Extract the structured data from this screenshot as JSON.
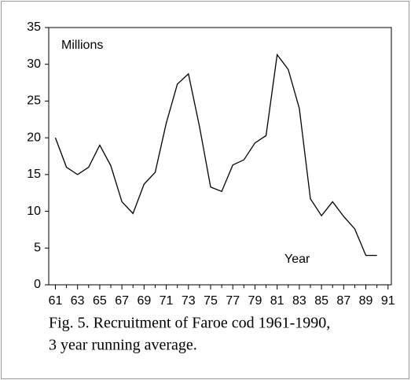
{
  "chart_data": {
    "type": "line",
    "annotations": [
      "Millions",
      "Year"
    ],
    "caption": [
      "Fig. 5. Recruitment of Faroe cod 1961-1990,",
      "3 year running average."
    ],
    "x": [
      1961,
      1962,
      1963,
      1964,
      1965,
      1966,
      1967,
      1968,
      1969,
      1970,
      1971,
      1972,
      1973,
      1974,
      1975,
      1976,
      1977,
      1978,
      1979,
      1980,
      1981,
      1982,
      1983,
      1984,
      1985,
      1986,
      1987,
      1988,
      1989,
      1990
    ],
    "series": [
      {
        "color": "#000000",
        "values": [
          20,
          16,
          15,
          16,
          19,
          16.2,
          11.3,
          9.7,
          13.7,
          15.3,
          22,
          27.3,
          28.7,
          21.5,
          13.3,
          12.7,
          16.3,
          17,
          19.3,
          20.3,
          31.3,
          29.3,
          24,
          11.7,
          9.4,
          11.3,
          9.3,
          7.6,
          4,
          4
        ]
      }
    ],
    "xlim": [
      1960.4,
      1991.3
    ],
    "xticks": [
      {
        "value": 1961,
        "label": "61"
      },
      {
        "value": 1963,
        "label": "63"
      },
      {
        "value": 1965,
        "label": "65"
      },
      {
        "value": 1967,
        "label": "67"
      },
      {
        "value": 1969,
        "label": "69"
      },
      {
        "value": 1971,
        "label": "71"
      },
      {
        "value": 1973,
        "label": "73"
      },
      {
        "value": 1975,
        "label": "75"
      },
      {
        "value": 1977,
        "label": "77"
      },
      {
        "value": 1979,
        "label": "79"
      },
      {
        "value": 1981,
        "label": "81"
      },
      {
        "value": 1983,
        "label": "83"
      },
      {
        "value": 1985,
        "label": "85"
      },
      {
        "value": 1987,
        "label": "87"
      },
      {
        "value": 1989,
        "label": "89"
      },
      {
        "value": 1991,
        "label": "91"
      }
    ],
    "xminorticks": [
      1962,
      1964,
      1966,
      1968,
      1970,
      1972,
      1974,
      1976,
      1978,
      1980,
      1982,
      1984,
      1986,
      1988,
      1990
    ],
    "ylim": [
      0,
      35
    ],
    "yticks": [
      0,
      5,
      10,
      15,
      20,
      25,
      30,
      35
    ],
    "grid": false
  }
}
